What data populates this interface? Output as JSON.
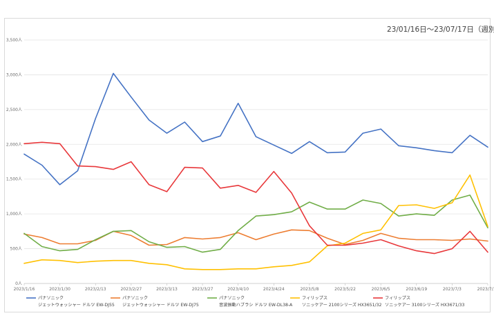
{
  "chart_data": {
    "type": "line",
    "title": "23/01/16日～23/07/17日（週別）",
    "xlabel": "",
    "ylabel": "",
    "ylim": [
      0,
      3500
    ],
    "yticks": [
      "0人",
      "500人",
      "1,000人",
      "1,500人",
      "2,000人",
      "2,500人",
      "3,000人",
      "3,500人"
    ],
    "ytick_values": [
      0,
      500,
      1000,
      1500,
      2000,
      2500,
      3000,
      3500
    ],
    "x_count": 27,
    "xticks": [
      {
        "index": 0,
        "label": "2023/1/16"
      },
      {
        "index": 2,
        "label": "2023/1/30"
      },
      {
        "index": 4,
        "label": "2023/2/13"
      },
      {
        "index": 6,
        "label": "2023/2/27"
      },
      {
        "index": 8,
        "label": "2023/3/13"
      },
      {
        "index": 10,
        "label": "2023/3/27"
      },
      {
        "index": 12,
        "label": "2023/4/10"
      },
      {
        "index": 14,
        "label": "2023/4/24"
      },
      {
        "index": 16,
        "label": "2023/5/8"
      },
      {
        "index": 18,
        "label": "2023/5/22"
      },
      {
        "index": 20,
        "label": "2023/6/5"
      },
      {
        "index": 22,
        "label": "2023/6/19"
      },
      {
        "index": 24,
        "label": "2023/7/3"
      },
      {
        "index": 26,
        "label": "2023/7/17"
      }
    ],
    "grid": true,
    "legend_position": "bottom",
    "series": [
      {
        "name": "パナソニック",
        "product": "ジェットウォッシャー ドルツ EW-DJ55",
        "color": "#4472c4",
        "values": [
          1860,
          1700,
          1420,
          1620,
          2370,
          3020,
          2680,
          2350,
          2160,
          2320,
          2040,
          2120,
          2590,
          2110,
          1990,
          1870,
          2040,
          1880,
          1890,
          2160,
          2220,
          1980,
          1950,
          1910,
          1880,
          2130,
          1960
        ]
      },
      {
        "name": "パナソニック",
        "product": "ジェットウォッシャー ドルツ EW-DJ75",
        "color": "#ed7d31",
        "values": [
          710,
          660,
          570,
          570,
          620,
          750,
          690,
          550,
          560,
          660,
          640,
          660,
          730,
          630,
          710,
          770,
          760,
          650,
          560,
          620,
          720,
          650,
          630,
          630,
          620,
          640,
          610
        ]
      },
      {
        "name": "パナソニック",
        "product": "音波振動ハブラシ ドルツ EW-DL38-A",
        "color": "#70ad47",
        "values": [
          720,
          530,
          470,
          490,
          630,
          750,
          760,
          600,
          520,
          530,
          450,
          490,
          760,
          970,
          990,
          1030,
          1170,
          1070,
          1070,
          1200,
          1150,
          970,
          1000,
          980,
          1200,
          1270,
          800
        ]
      },
      {
        "name": "フィリップス",
        "product": "ソニッケアー 2100シリーズ HX3651/32",
        "color": "#ffc000",
        "values": [
          290,
          340,
          330,
          300,
          320,
          330,
          330,
          290,
          270,
          210,
          200,
          200,
          210,
          210,
          240,
          260,
          310,
          540,
          580,
          720,
          770,
          1120,
          1130,
          1080,
          1160,
          1560,
          820
        ]
      },
      {
        "name": "フィリップス",
        "product": "ソニッケアー 3100シリーズ HX3671/33",
        "color": "#e8373a",
        "values": [
          2010,
          2030,
          2010,
          1690,
          1680,
          1640,
          1750,
          1420,
          1320,
          1670,
          1660,
          1370,
          1410,
          1310,
          1610,
          1300,
          830,
          550,
          550,
          580,
          630,
          540,
          470,
          430,
          500,
          750,
          450
        ]
      }
    ]
  }
}
